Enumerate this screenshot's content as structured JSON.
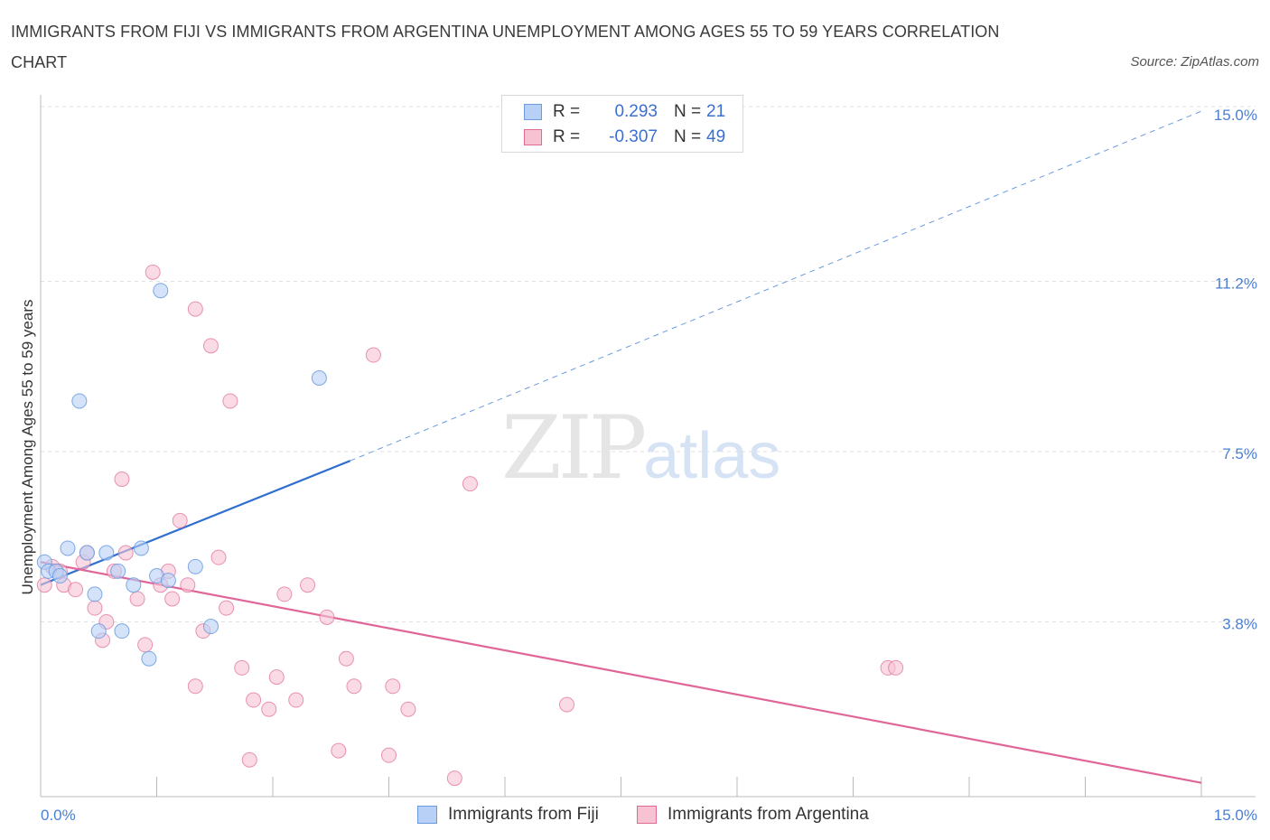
{
  "title": "IMMIGRANTS FROM FIJI VS IMMIGRANTS FROM ARGENTINA UNEMPLOYMENT AMONG AGES 55 TO 59 YEARS CORRELATION CHART",
  "source": "Source: ZipAtlas.com",
  "watermark": {
    "zip": "ZIP",
    "atlas": "atlas"
  },
  "legend": {
    "fiji": {
      "r_label": "R =",
      "r_value": "0.293",
      "n_label": "N =",
      "n_value": "21"
    },
    "argentina": {
      "r_label": "R =",
      "r_value": "-0.307",
      "n_label": "N =",
      "n_value": "49"
    }
  },
  "bottom_legend": {
    "fiji": "Immigrants from Fiji",
    "argentina": "Immigrants from Argentina"
  },
  "colors": {
    "fiji": "#6a9be0",
    "fiji_fill": "#b8d0f5",
    "argentina": "#e06a94",
    "argentina_fill": "#f7c3d3",
    "tick": "#4a7fd0"
  },
  "chart_data": {
    "type": "scatter",
    "title": "IMMIGRANTS FROM FIJI VS IMMIGRANTS FROM ARGENTINA UNEMPLOYMENT AMONG AGES 55 TO 59 YEARS CORRELATION CHART",
    "xlabel": "",
    "ylabel": "Unemployment Among Ages 55 to 59 years",
    "xlim": [
      0,
      15
    ],
    "ylim": [
      0,
      15
    ],
    "x_tick_labels": [
      "0.0%",
      "15.0%"
    ],
    "y_ticks": [
      3.8,
      7.5,
      11.2,
      15.0
    ],
    "y_tick_labels": [
      "3.8%",
      "7.5%",
      "11.2%",
      "15.0%"
    ],
    "series": [
      {
        "name": "Immigrants from Fiji",
        "points": [
          [
            0.05,
            5.1
          ],
          [
            0.1,
            4.9
          ],
          [
            0.2,
            4.9
          ],
          [
            0.25,
            4.8
          ],
          [
            0.35,
            5.4
          ],
          [
            0.5,
            8.6
          ],
          [
            0.6,
            5.3
          ],
          [
            0.7,
            4.4
          ],
          [
            0.75,
            3.6
          ],
          [
            0.85,
            5.3
          ],
          [
            1.0,
            4.9
          ],
          [
            1.05,
            3.6
          ],
          [
            1.2,
            4.6
          ],
          [
            1.3,
            5.4
          ],
          [
            1.4,
            3.0
          ],
          [
            1.5,
            4.8
          ],
          [
            1.55,
            11.0
          ],
          [
            1.65,
            4.7
          ],
          [
            2.0,
            5.0
          ],
          [
            2.2,
            3.7
          ],
          [
            3.6,
            9.1
          ]
        ],
        "trend": {
          "x": [
            0,
            4.0
          ],
          "y": [
            4.6,
            7.3
          ],
          "dashed_to": [
            15,
            14.9
          ]
        }
      },
      {
        "name": "Immigrants from Argentina",
        "points": [
          [
            0.05,
            4.6
          ],
          [
            0.15,
            5.0
          ],
          [
            0.25,
            4.9
          ],
          [
            0.3,
            4.6
          ],
          [
            0.45,
            4.5
          ],
          [
            0.55,
            5.1
          ],
          [
            0.6,
            5.3
          ],
          [
            0.7,
            4.1
          ],
          [
            0.8,
            3.4
          ],
          [
            0.85,
            3.8
          ],
          [
            0.95,
            4.9
          ],
          [
            1.05,
            6.9
          ],
          [
            1.1,
            5.3
          ],
          [
            1.25,
            4.3
          ],
          [
            1.35,
            3.3
          ],
          [
            1.45,
            11.4
          ],
          [
            1.55,
            4.6
          ],
          [
            1.65,
            4.9
          ],
          [
            1.7,
            4.3
          ],
          [
            1.8,
            6.0
          ],
          [
            1.9,
            4.6
          ],
          [
            2.0,
            2.4
          ],
          [
            2.0,
            10.6
          ],
          [
            2.1,
            3.6
          ],
          [
            2.2,
            9.8
          ],
          [
            2.3,
            5.2
          ],
          [
            2.4,
            4.1
          ],
          [
            2.45,
            8.6
          ],
          [
            2.6,
            2.8
          ],
          [
            2.7,
            0.8
          ],
          [
            2.75,
            2.1
          ],
          [
            2.95,
            1.9
          ],
          [
            3.05,
            2.6
          ],
          [
            3.15,
            4.4
          ],
          [
            3.3,
            2.1
          ],
          [
            3.45,
            4.6
          ],
          [
            3.7,
            3.9
          ],
          [
            3.85,
            1.0
          ],
          [
            3.95,
            3.0
          ],
          [
            4.05,
            2.4
          ],
          [
            4.3,
            9.6
          ],
          [
            4.5,
            0.9
          ],
          [
            4.55,
            2.4
          ],
          [
            4.75,
            1.9
          ],
          [
            5.35,
            0.4
          ],
          [
            5.55,
            6.8
          ],
          [
            6.8,
            2.0
          ],
          [
            10.95,
            2.8
          ],
          [
            11.05,
            2.8
          ]
        ],
        "trend": {
          "x": [
            0,
            15
          ],
          "y": [
            5.1,
            0.3
          ]
        }
      }
    ]
  }
}
